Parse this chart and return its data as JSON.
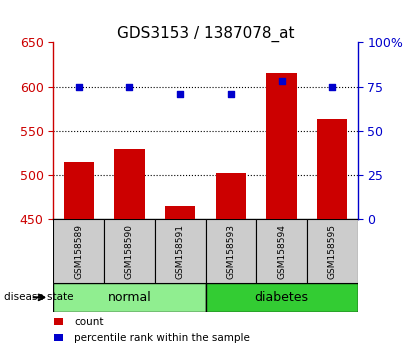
{
  "title": "GDS3153 / 1387078_at",
  "samples": [
    "GSM158589",
    "GSM158590",
    "GSM158591",
    "GSM158593",
    "GSM158594",
    "GSM158595"
  ],
  "counts": [
    515,
    530,
    465,
    502,
    615,
    563
  ],
  "percentiles": [
    75,
    75,
    71,
    71,
    78,
    75
  ],
  "ylim_left": [
    450,
    650
  ],
  "ylim_right": [
    0,
    100
  ],
  "yticks_left": [
    450,
    500,
    550,
    600,
    650
  ],
  "yticks_right": [
    0,
    25,
    50,
    75,
    100
  ],
  "ytick_labels_right": [
    "0",
    "25",
    "50",
    "75",
    "100%"
  ],
  "bar_color": "#cc0000",
  "dot_color": "#0000cc",
  "bar_width": 0.6,
  "groups": [
    {
      "label": "normal",
      "indices": [
        0,
        1,
        2
      ],
      "color": "#90ee90"
    },
    {
      "label": "diabetes",
      "indices": [
        3,
        4,
        5
      ],
      "color": "#33cc33"
    }
  ],
  "disease_state_label": "disease state",
  "legend": [
    {
      "label": "count",
      "color": "#cc0000"
    },
    {
      "label": "percentile rank within the sample",
      "color": "#0000cc"
    }
  ],
  "grid_yticks": [
    500,
    550,
    600
  ],
  "box_bg_color": "#cccccc",
  "plot_bg_color": "#ffffff",
  "title_fontsize": 11,
  "tick_fontsize": 9
}
